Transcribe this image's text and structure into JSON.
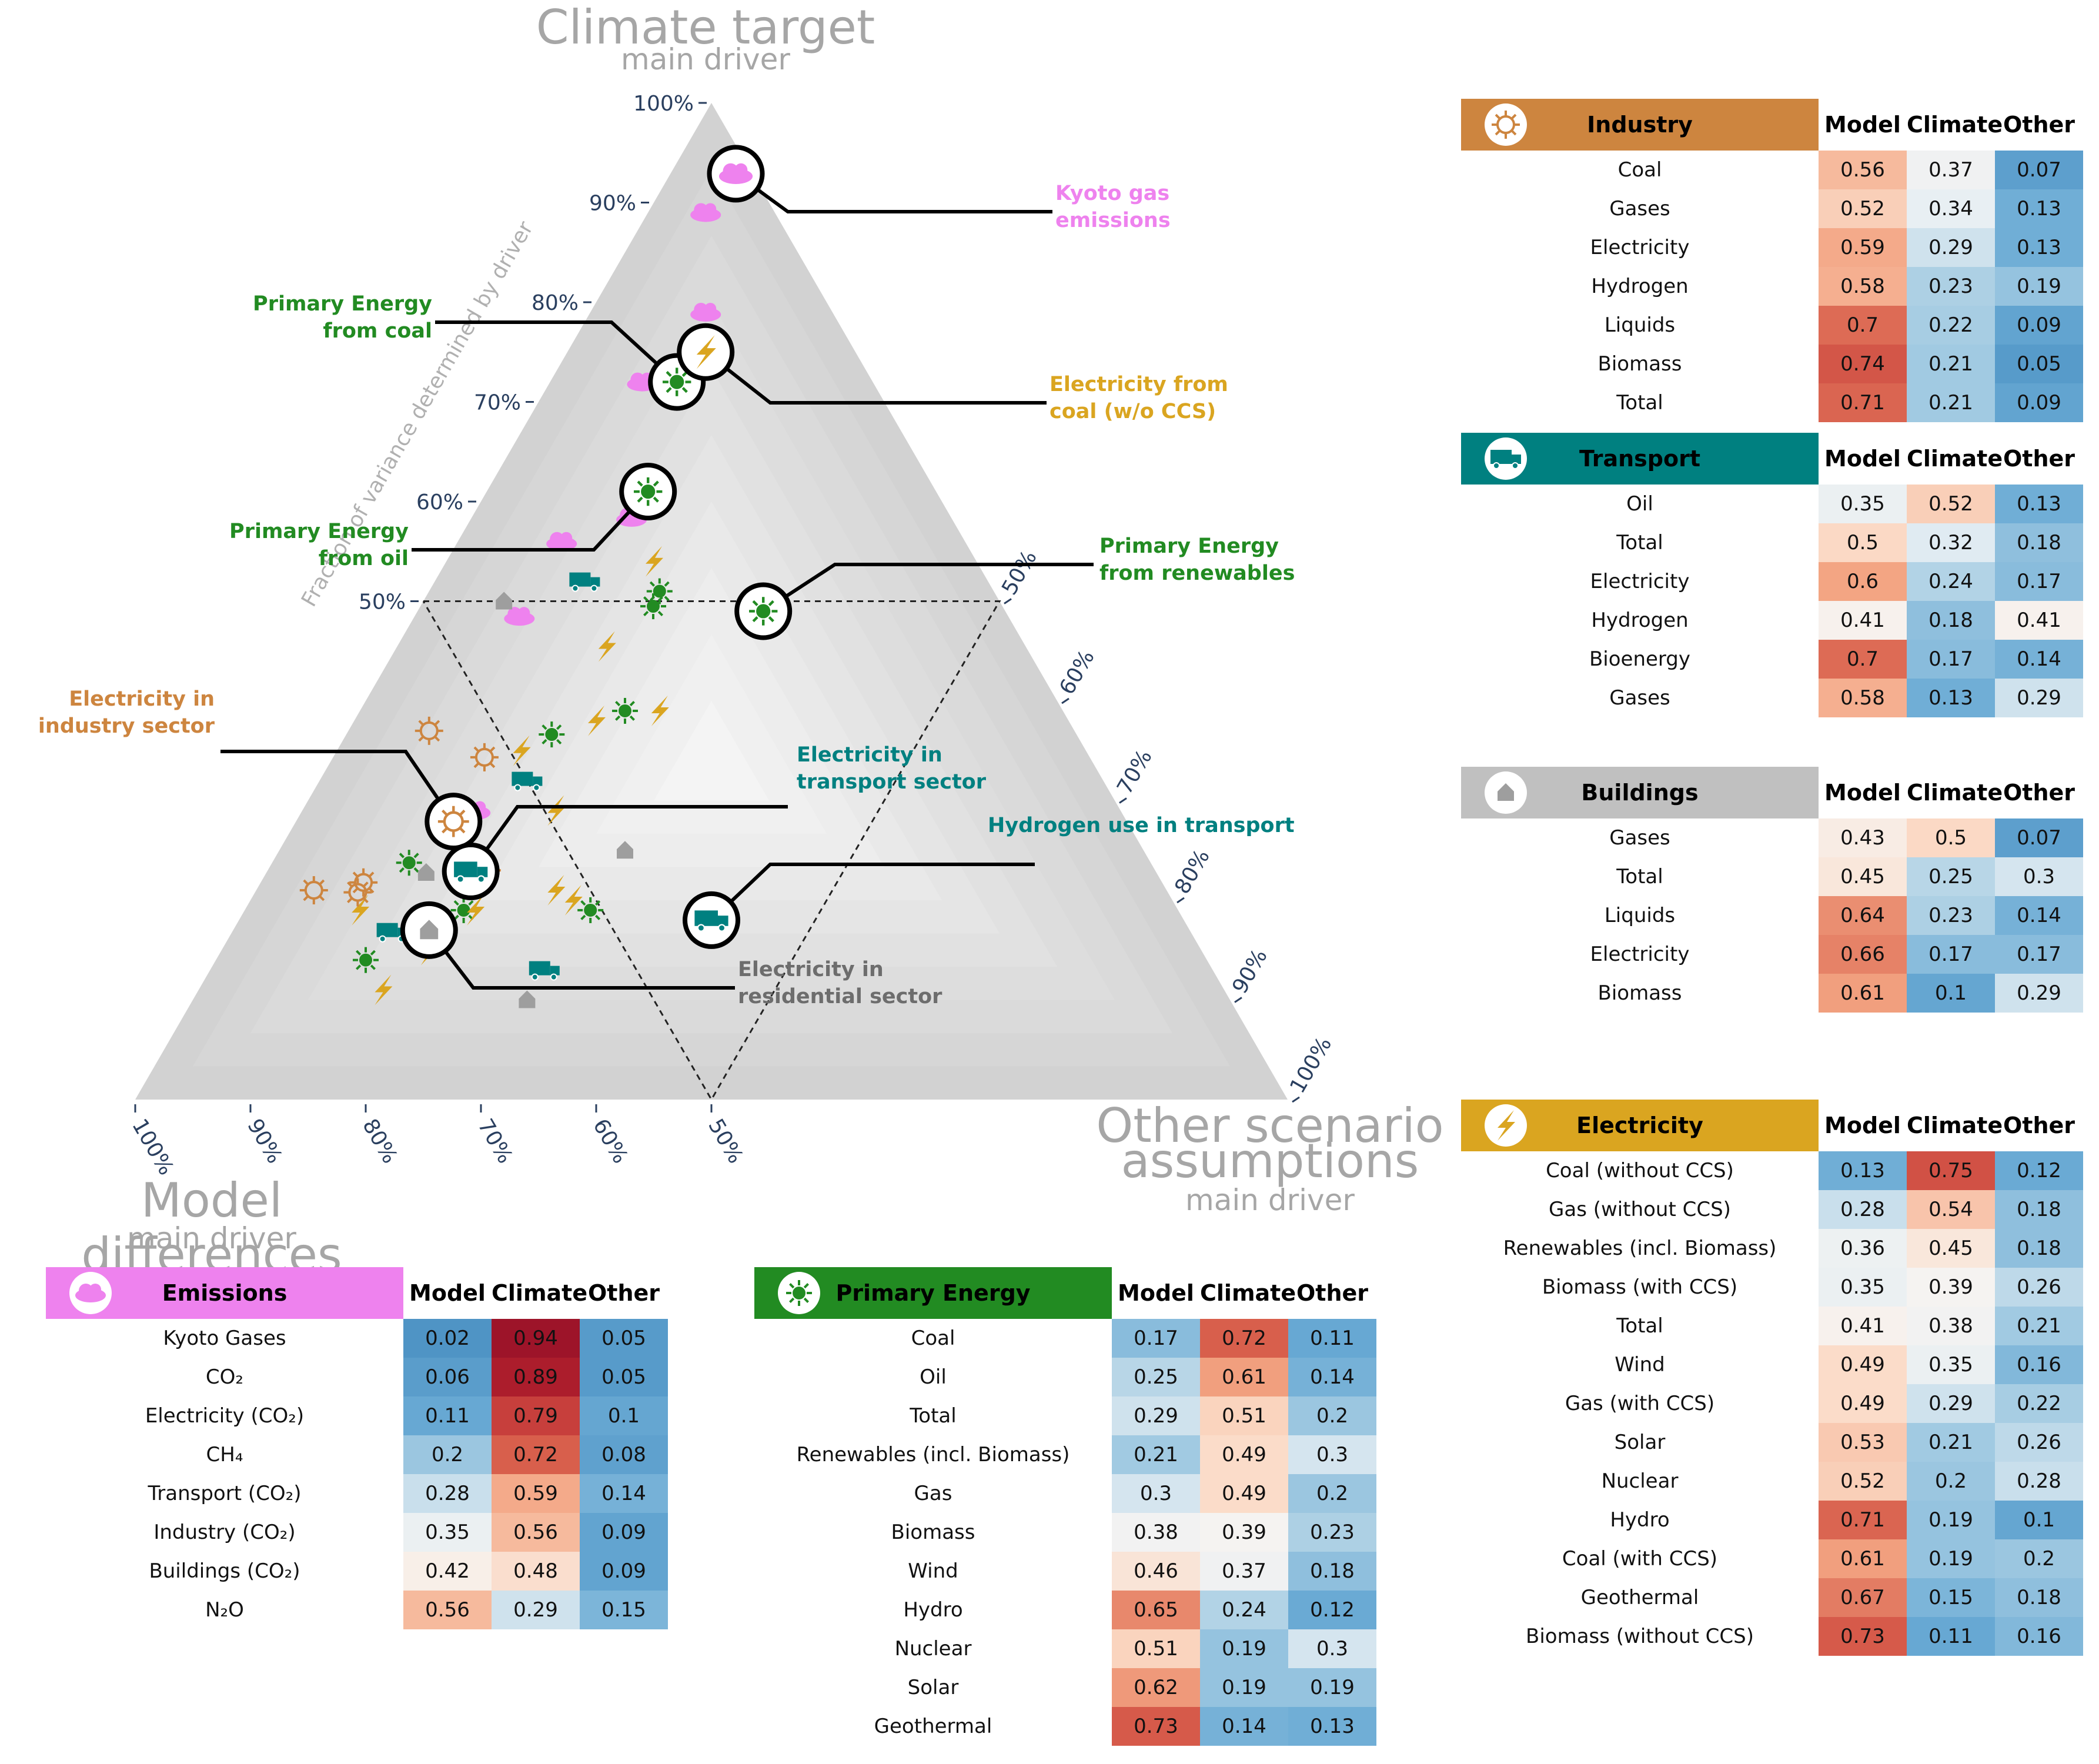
{
  "chart_data": {
    "type": "ternary",
    "axes": {
      "top": {
        "title": "Climate target",
        "subtitle": "main driver",
        "side_title": "Fraction of variance determined by driver",
        "ticks": [
          "50%",
          "60%",
          "70%",
          "80%",
          "90%",
          "100%"
        ]
      },
      "left": {
        "title": "Model differences",
        "subtitle": "main driver",
        "ticks": [
          "100%",
          "90%",
          "80%",
          "70%",
          "60%",
          "50%"
        ]
      },
      "right": {
        "title": "Other scenario assumptions",
        "subtitle": "main driver",
        "ticks": [
          "50%",
          "60%",
          "70%",
          "80%",
          "90%",
          "100%"
        ]
      }
    },
    "callouts": [
      {
        "label": "Kyoto gas emissions",
        "sector": "emissions",
        "model": 0.02,
        "climate": 0.94,
        "other": 0.05
      },
      {
        "label": "Primary Energy from coal",
        "sector": "primary",
        "model": 0.17,
        "climate": 0.72,
        "other": 0.11
      },
      {
        "label": "Electricity from coal (w/o CCS)",
        "sector": "electricity",
        "model": 0.13,
        "climate": 0.75,
        "other": 0.12
      },
      {
        "label": "Primary Energy from oil",
        "sector": "primary",
        "model": 0.25,
        "climate": 0.61,
        "other": 0.14
      },
      {
        "label": "Primary Energy from renewables",
        "sector": "primary",
        "model": 0.21,
        "climate": 0.49,
        "other": 0.3
      },
      {
        "label": "Electricity in industry sector",
        "sector": "industry",
        "model": 0.59,
        "climate": 0.29,
        "other": 0.13
      },
      {
        "label": "Electricity in transport sector",
        "sector": "transport",
        "model": 0.6,
        "climate": 0.24,
        "other": 0.17
      },
      {
        "label": "Hydrogen use in transport",
        "sector": "transport",
        "model": 0.41,
        "climate": 0.18,
        "other": 0.41
      },
      {
        "label": "Electricity in residential sector",
        "sector": "buildings",
        "model": 0.66,
        "climate": 0.17,
        "other": 0.17
      }
    ]
  },
  "tables": {
    "industry": {
      "title": "Industry",
      "color": "#CD853F",
      "icon": "factory-gear-icon",
      "columns": [
        "Model",
        "Climate",
        "Other"
      ],
      "rows": [
        {
          "label": "Coal",
          "values": [
            0.56,
            0.37,
            0.07
          ]
        },
        {
          "label": "Gases",
          "values": [
            0.52,
            0.34,
            0.13
          ]
        },
        {
          "label": "Electricity",
          "values": [
            0.59,
            0.29,
            0.13
          ]
        },
        {
          "label": "Hydrogen",
          "values": [
            0.58,
            0.23,
            0.19
          ]
        },
        {
          "label": "Liquids",
          "values": [
            0.7,
            0.22,
            0.09
          ]
        },
        {
          "label": "Biomass",
          "values": [
            0.74,
            0.21,
            0.05
          ]
        },
        {
          "label": "Total",
          "values": [
            0.71,
            0.21,
            0.09
          ]
        }
      ]
    },
    "transport": {
      "title": "Transport",
      "color": "#008080",
      "icon": "truck-icon",
      "columns": [
        "Model",
        "Climate",
        "Other"
      ],
      "rows": [
        {
          "label": "Oil",
          "values": [
            0.35,
            0.52,
            0.13
          ]
        },
        {
          "label": "Total",
          "values": [
            0.5,
            0.32,
            0.18
          ]
        },
        {
          "label": "Electricity",
          "values": [
            0.6,
            0.24,
            0.17
          ]
        },
        {
          "label": "Hydrogen",
          "values": [
            0.41,
            0.18,
            0.41
          ]
        },
        {
          "label": "Bioenergy",
          "values": [
            0.7,
            0.17,
            0.14
          ]
        },
        {
          "label": "Gases",
          "values": [
            0.58,
            0.13,
            0.29
          ]
        }
      ]
    },
    "buildings": {
      "title": "Buildings",
      "color": "#C0C0C0",
      "icon": "house-icon",
      "columns": [
        "Model",
        "Climate",
        "Other"
      ],
      "rows": [
        {
          "label": "Gases",
          "values": [
            0.43,
            0.5,
            0.07
          ]
        },
        {
          "label": "Total",
          "values": [
            0.45,
            0.25,
            0.3
          ]
        },
        {
          "label": "Liquids",
          "values": [
            0.64,
            0.23,
            0.14
          ]
        },
        {
          "label": "Electricity",
          "values": [
            0.66,
            0.17,
            0.17
          ]
        },
        {
          "label": "Biomass",
          "values": [
            0.61,
            0.1,
            0.29
          ]
        }
      ]
    },
    "electricity": {
      "title": "Electricity",
      "color": "#DAA520",
      "icon": "lightning-icon",
      "columns": [
        "Model",
        "Climate",
        "Other"
      ],
      "rows": [
        {
          "label": "Coal (without CCS)",
          "values": [
            0.13,
            0.75,
            0.12
          ]
        },
        {
          "label": "Gas (without CCS)",
          "values": [
            0.28,
            0.54,
            0.18
          ]
        },
        {
          "label": "Renewables (incl. Biomass)",
          "values": [
            0.36,
            0.45,
            0.18
          ]
        },
        {
          "label": "Biomass (with CCS)",
          "values": [
            0.35,
            0.39,
            0.26
          ]
        },
        {
          "label": "Total",
          "values": [
            0.41,
            0.38,
            0.21
          ]
        },
        {
          "label": "Wind",
          "values": [
            0.49,
            0.35,
            0.16
          ]
        },
        {
          "label": "Gas (with CCS)",
          "values": [
            0.49,
            0.29,
            0.22
          ]
        },
        {
          "label": "Solar",
          "values": [
            0.53,
            0.21,
            0.26
          ]
        },
        {
          "label": "Nuclear",
          "values": [
            0.52,
            0.2,
            0.28
          ]
        },
        {
          "label": "Hydro",
          "values": [
            0.71,
            0.19,
            0.1
          ]
        },
        {
          "label": "Coal (with CCS)",
          "values": [
            0.61,
            0.19,
            0.2
          ]
        },
        {
          "label": "Geothermal",
          "values": [
            0.67,
            0.15,
            0.18
          ]
        },
        {
          "label": "Biomass (without CCS)",
          "values": [
            0.73,
            0.11,
            0.16
          ]
        }
      ]
    },
    "emissions": {
      "title": "Emissions",
      "color": "#EE82EE",
      "icon": "cloud-icon",
      "columns": [
        "Model",
        "Climate",
        "Other"
      ],
      "rows": [
        {
          "label": "Kyoto Gases",
          "values": [
            0.02,
            0.94,
            0.05
          ]
        },
        {
          "label": "CO₂",
          "values": [
            0.06,
            0.89,
            0.05
          ]
        },
        {
          "label": "Electricity (CO₂)",
          "values": [
            0.11,
            0.79,
            0.1
          ]
        },
        {
          "label": "CH₄",
          "values": [
            0.2,
            0.72,
            0.08
          ]
        },
        {
          "label": "Transport (CO₂)",
          "values": [
            0.28,
            0.59,
            0.14
          ]
        },
        {
          "label": "Industry (CO₂)",
          "values": [
            0.35,
            0.56,
            0.09
          ]
        },
        {
          "label": "Buildings (CO₂)",
          "values": [
            0.42,
            0.48,
            0.09
          ]
        },
        {
          "label": "N₂O",
          "values": [
            0.56,
            0.29,
            0.15
          ]
        }
      ]
    },
    "primary": {
      "title": "Primary Energy",
      "color": "#228B22",
      "icon": "sun-gear-icon",
      "columns": [
        "Model",
        "Climate",
        "Other"
      ],
      "rows": [
        {
          "label": "Coal",
          "values": [
            0.17,
            0.72,
            0.11
          ]
        },
        {
          "label": "Oil",
          "values": [
            0.25,
            0.61,
            0.14
          ]
        },
        {
          "label": "Total",
          "values": [
            0.29,
            0.51,
            0.2
          ]
        },
        {
          "label": "Renewables (incl. Biomass)",
          "values": [
            0.21,
            0.49,
            0.3
          ]
        },
        {
          "label": "Gas",
          "values": [
            0.3,
            0.49,
            0.2
          ]
        },
        {
          "label": "Biomass",
          "values": [
            0.38,
            0.39,
            0.23
          ]
        },
        {
          "label": "Wind",
          "values": [
            0.46,
            0.37,
            0.18
          ]
        },
        {
          "label": "Hydro",
          "values": [
            0.65,
            0.24,
            0.12
          ]
        },
        {
          "label": "Nuclear",
          "values": [
            0.51,
            0.19,
            0.3
          ]
        },
        {
          "label": "Solar",
          "values": [
            0.62,
            0.19,
            0.19
          ]
        },
        {
          "label": "Geothermal",
          "values": [
            0.73,
            0.14,
            0.13
          ]
        }
      ]
    }
  }
}
